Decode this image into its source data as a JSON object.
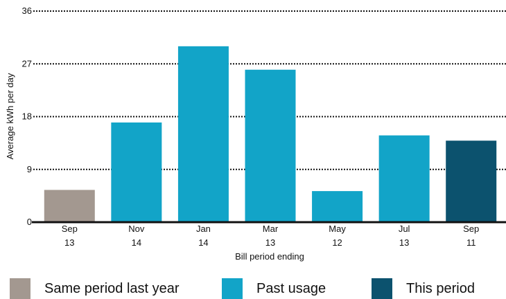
{
  "chart_data": {
    "type": "bar",
    "categories": [
      {
        "month": "Sep",
        "year": "13"
      },
      {
        "month": "Nov",
        "year": "14"
      },
      {
        "month": "Jan",
        "year": "14"
      },
      {
        "month": "Mar",
        "year": "13"
      },
      {
        "month": "May",
        "year": "12"
      },
      {
        "month": "Jul",
        "year": "13"
      },
      {
        "month": "Sep",
        "year": "11"
      }
    ],
    "values": [
      5.5,
      17,
      30,
      26,
      5.3,
      14.8,
      13.9
    ],
    "bar_groups": [
      "same_period",
      "past",
      "past",
      "past",
      "past",
      "past",
      "this_period"
    ],
    "xlabel": "Bill period ending",
    "ylabel": "Average kWh per day",
    "ylim": [
      0,
      36
    ],
    "yticks": [
      0,
      9,
      18,
      27,
      36
    ],
    "grid": true,
    "legend_position": "bottom",
    "legend": [
      {
        "key": "same_period",
        "label": "Same period last year",
        "color": "#a39890"
      },
      {
        "key": "past",
        "label": "Past usage",
        "color": "#12a4c8"
      },
      {
        "key": "this_period",
        "label": "This period",
        "color": "#0c526e"
      }
    ]
  }
}
